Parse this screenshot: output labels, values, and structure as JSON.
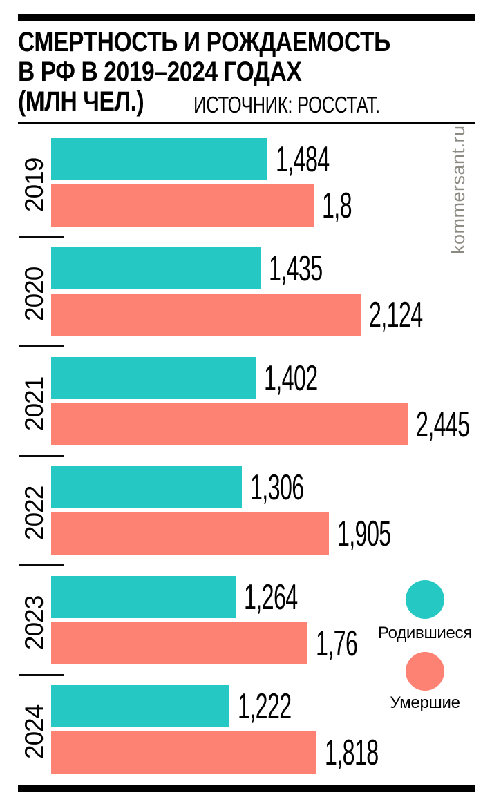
{
  "header": {
    "title_lines": [
      "СМЕРТНОСТЬ И РОЖДАЕМОСТЬ",
      "В РФ В 2019–2024 ГОДАХ",
      "(МЛН ЧЕЛ.)"
    ],
    "source": "ИСТОЧНИК: РОССТАТ."
  },
  "watermark": "kommersant.ru",
  "colors": {
    "births": "#26C8C4",
    "deaths": "#FD8273",
    "text": "#000000",
    "watermark": "#8B8A83",
    "background": "#FFFFFF"
  },
  "legend": {
    "items": [
      {
        "label": "Родившиеся",
        "color_key": "births"
      },
      {
        "label": "Умершие",
        "color_key": "deaths"
      }
    ]
  },
  "chart_data": {
    "type": "bar",
    "orientation": "horizontal",
    "title": "СМЕРТНОСТЬ И РОЖДАЕМОСТЬ В РФ В 2019–2024 ГОДАХ (МЛН ЧЕЛ.)",
    "source": "ИСТОЧНИК: РОССТАТ.",
    "unit": "млн чел.",
    "categories": [
      "2019",
      "2020",
      "2021",
      "2022",
      "2023",
      "2024"
    ],
    "series": [
      {
        "name": "Родившиеся",
        "key": "births",
        "color": "#26C8C4",
        "values": [
          1.484,
          1.435,
          1.402,
          1.306,
          1.264,
          1.222
        ],
        "labels": [
          "1,484",
          "1,435",
          "1,402",
          "1,306",
          "1,264",
          "1,222"
        ]
      },
      {
        "name": "Умершие",
        "key": "deaths",
        "color": "#FD8273",
        "values": [
          1.8,
          2.124,
          2.445,
          1.905,
          1.76,
          1.818
        ],
        "labels": [
          "1,8",
          "2,124",
          "2,445",
          "1,905",
          "1,76",
          "1,818"
        ]
      }
    ],
    "xlim": [
      0,
      2.6
    ],
    "grid": false,
    "legend_position": "right-bottom"
  }
}
